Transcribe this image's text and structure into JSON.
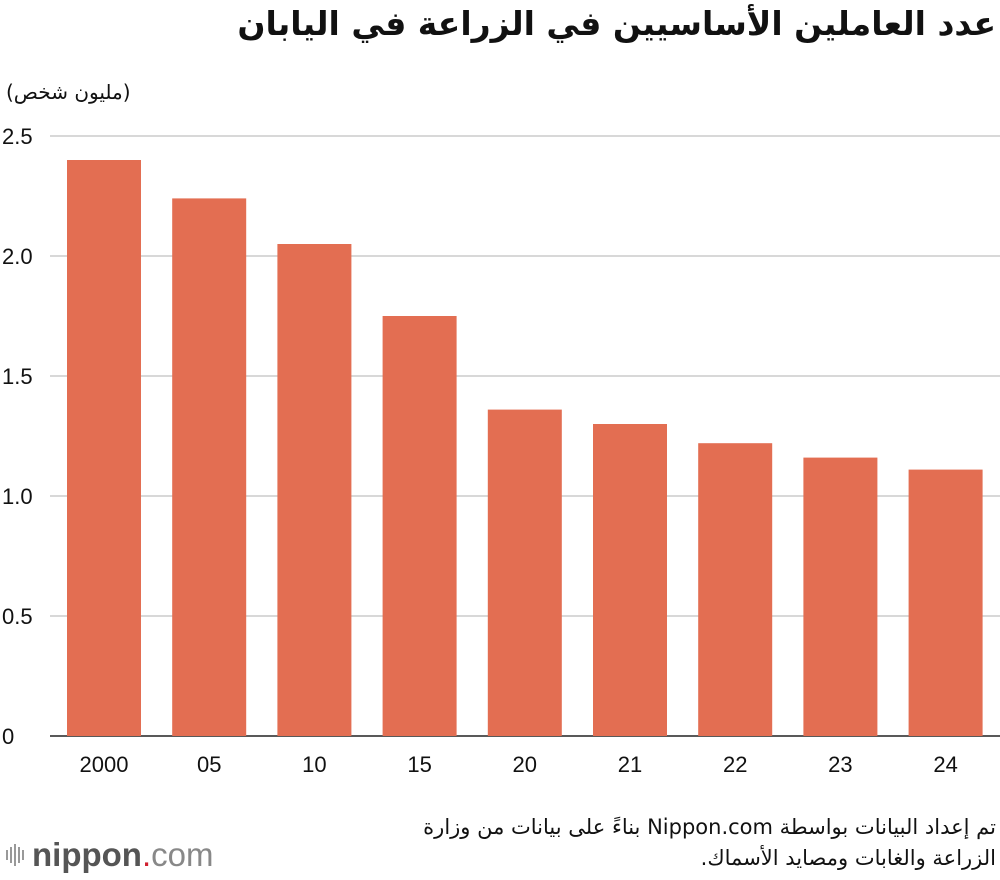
{
  "title": "عدد العاملين الأساسيين في الزراعة في اليابان",
  "source_note": "تم إعداد البيانات بواسطة Nippon.com بناءً على بيانات من وزارة الزراعة والغابات ومصايد الأسماك.",
  "logo": {
    "name": "nippon",
    "dot": ".",
    "tld": "com"
  },
  "colors": {
    "bar": "#e36e52",
    "grid": "#cccccc",
    "text": "#111111"
  },
  "chart_data": {
    "type": "bar",
    "title": "عدد العاملين الأساسيين في الزراعة في اليابان",
    "ylabel": "(مليون شخص)",
    "xlabel": "",
    "categories": [
      "2000",
      "05",
      "10",
      "15",
      "20",
      "21",
      "22",
      "23",
      "24"
    ],
    "values": [
      2.4,
      2.24,
      2.05,
      1.75,
      1.36,
      1.3,
      1.22,
      1.16,
      1.11
    ],
    "ylim": [
      0,
      2.5
    ],
    "yticks": [
      "0",
      "0.5",
      "1.0",
      "1.5",
      "2.0",
      "2.5"
    ],
    "grid": true,
    "legend": "none"
  }
}
